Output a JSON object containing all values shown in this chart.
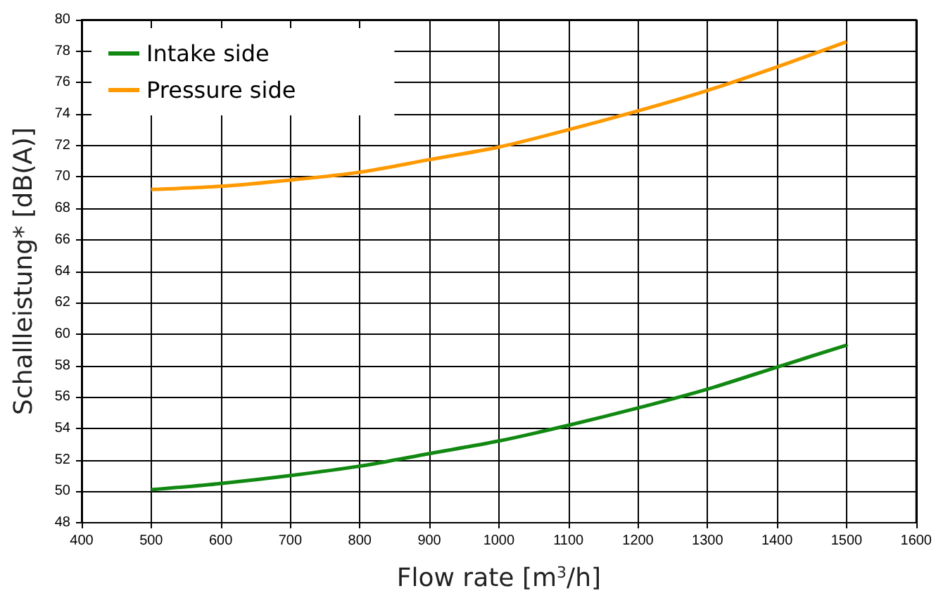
{
  "chart_data": {
    "type": "line",
    "xlabel": "Flow rate [m$^{3}$/h]",
    "ylabel": "Schallleistung* [dB(A)]",
    "x": [
      500,
      600,
      700,
      800,
      900,
      1000,
      1100,
      1200,
      1300,
      1400,
      1500
    ],
    "series": [
      {
        "name": "Intake side",
        "color": "#118811",
        "values": [
          50.1,
          50.5,
          51.0,
          51.6,
          52.4,
          53.2,
          54.2,
          55.3,
          56.5,
          57.9,
          59.3
        ]
      },
      {
        "name": "Pressure side",
        "color": "#ff9900",
        "values": [
          69.2,
          69.4,
          69.8,
          70.3,
          71.1,
          71.9,
          73.0,
          74.2,
          75.5,
          77.0,
          78.6
        ]
      }
    ],
    "xlim": [
      400,
      1600
    ],
    "xticks": [
      400,
      500,
      600,
      700,
      800,
      900,
      1000,
      1100,
      1200,
      1300,
      1400,
      1500,
      1600
    ],
    "ylim": [
      48,
      80
    ],
    "yticks": [
      48,
      50,
      52,
      54,
      56,
      58,
      60,
      62,
      64,
      66,
      68,
      70,
      72,
      74,
      76,
      78,
      80
    ],
    "grid": true,
    "legend": "top left",
    "marker": "none",
    "line_style": "solid"
  }
}
